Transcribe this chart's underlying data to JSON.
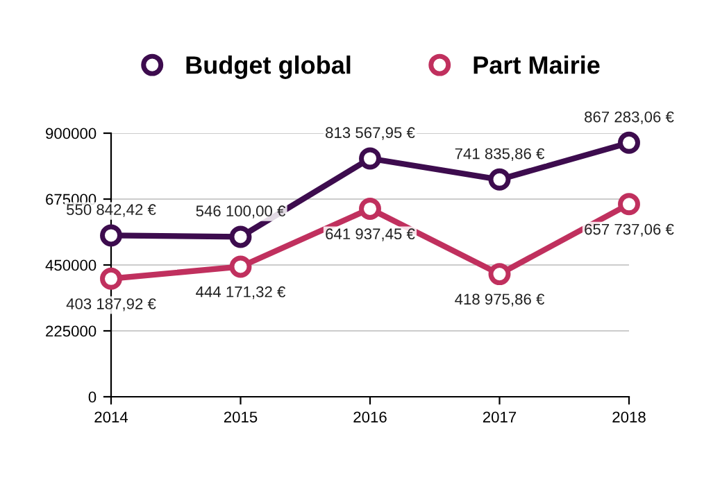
{
  "chart_data": {
    "type": "line",
    "categories": [
      "2014",
      "2015",
      "2016",
      "2017",
      "2018"
    ],
    "series": [
      {
        "name": "Budget global",
        "color": "#3d0c4e",
        "values": [
          550842.42,
          546100.0,
          813567.95,
          741835.86,
          867283.06
        ],
        "value_labels": [
          "550 842,42 €",
          "546 100,00 €",
          "813 567,95 €",
          "741 835,86 €",
          "867 283,06 €"
        ]
      },
      {
        "name": "Part Mairie",
        "color": "#c0305e",
        "values": [
          403187.92,
          444171.32,
          641937.45,
          418975.86,
          657737.06
        ],
        "value_labels": [
          "403 187,92 €",
          "444 171,32 €",
          "641 937,45 €",
          "418 975,86 €",
          "657 737,06 €"
        ]
      }
    ],
    "ylim": [
      0,
      900000
    ],
    "yticks": [
      0,
      225000,
      450000,
      675000,
      900000
    ],
    "grid": "y",
    "legend": "top",
    "marker": "circle",
    "line_style": "solid"
  }
}
